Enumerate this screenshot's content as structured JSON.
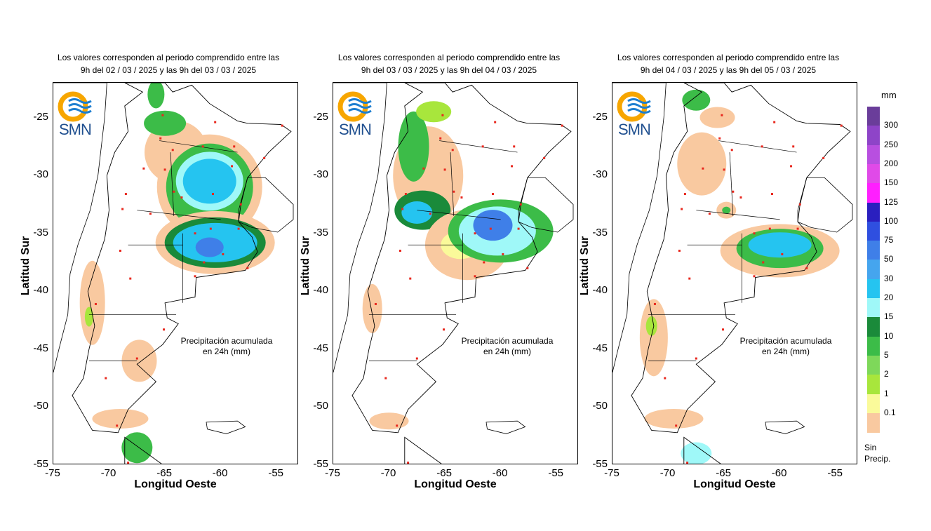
{
  "panels": [
    {
      "title_line1": "Los valores corresponden al periodo comprendido entre las",
      "title_line2": "9h del 02 / 03 / 2025  y las 9h del 03 / 03 / 2025",
      "note_line1": "Precipitación acumulada",
      "note_line2": "en 24h (mm)"
    },
    {
      "title_line1": "Los valores corresponden al periodo comprendido entre las",
      "title_line2": "9h del 03 / 03 / 2025  y las 9h del 04 / 03 / 2025",
      "note_line1": "Precipitación acumulada",
      "note_line2": "en 24h (mm)"
    },
    {
      "title_line1": "Los valores corresponden al periodo comprendido entre las",
      "title_line2": "9h del 04 / 03 / 2025  y las 9h del 05 / 03 / 2025",
      "note_line1": "Precipitación acumulada",
      "note_line2": "en 24h (mm)"
    }
  ],
  "logo_text": "SMN",
  "axes": {
    "xlabel": "Longitud Oeste",
    "ylabel": "Latitud Sur",
    "xticks": [
      "-75",
      "-70",
      "-65",
      "-60",
      "-55"
    ],
    "yticks": [
      "-25",
      "-30",
      "-35",
      "-40",
      "-45",
      "-50",
      "-55"
    ]
  },
  "legend": {
    "unit": "mm",
    "labels": [
      "300",
      "250",
      "200",
      "150",
      "125",
      "100",
      "75",
      "50",
      "30",
      "20",
      "15",
      "10",
      "5",
      "2",
      "1",
      "0.1"
    ],
    "no_precip_line1": "Sin",
    "no_precip_line2": "Precip.",
    "colors": [
      "#6a3d9a",
      "#8e44c8",
      "#b84fe0",
      "#e04ae8",
      "#ff1fff",
      "#2a1fbf",
      "#2f4fe0",
      "#3f7fe8",
      "#45a5ee",
      "#25c4f0",
      "#9ff8f8",
      "#1a8a3a",
      "#3cbc48",
      "#7ed85a",
      "#a8e63c",
      "#fafa9a",
      "#f9c9a0"
    ]
  }
}
